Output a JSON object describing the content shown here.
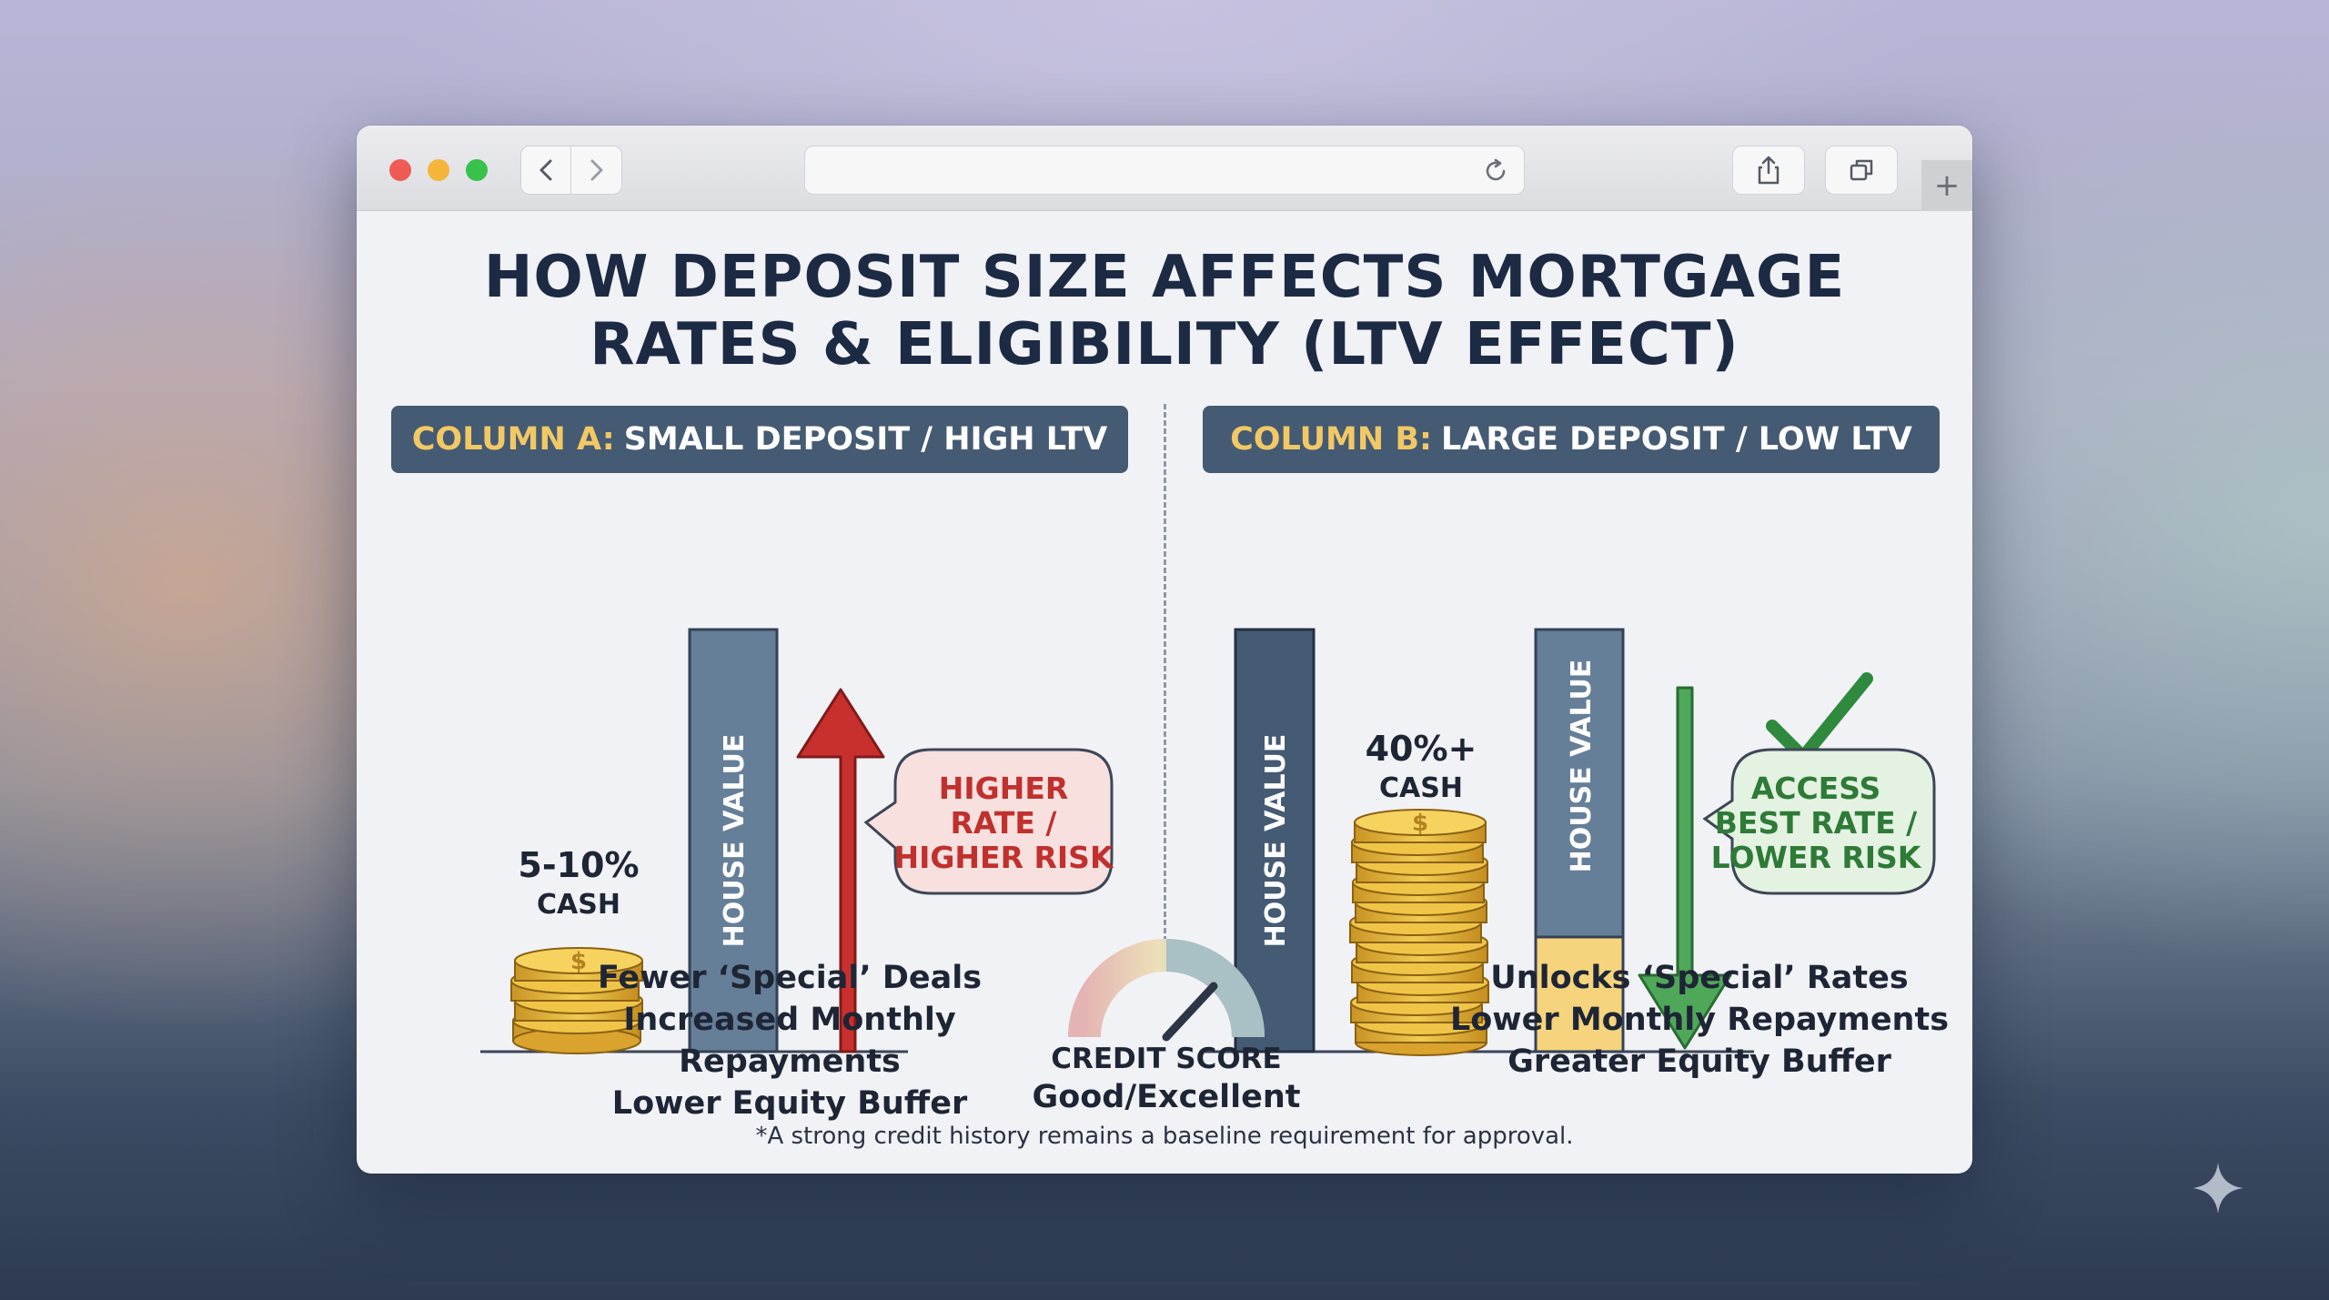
{
  "browser": {
    "back_icon": "chevron-left-icon",
    "forward_icon": "chevron-right-icon",
    "reload_icon": "reload-icon",
    "share_icon": "share-icon",
    "tabs_icon": "tabs-overview-icon",
    "new_tab_label": "+"
  },
  "infographic": {
    "title_line1": "HOW DEPOSIT SIZE AFFECTS MORTGAGE",
    "title_line2": "RATES & ELIGIBILITY (LTV EFFECT)",
    "column_a": {
      "prefix": "COLUMN A:",
      "heading": "SMALL DEPOSIT / HIGH LTV",
      "cash_amount": "5-10%",
      "cash_label": "CASH",
      "house_label": "HOUSE VALUE",
      "callout_line1": "HIGHER",
      "callout_line2": "RATE /",
      "callout_line3": "HIGHER RISK",
      "benefit1": "Fewer ‘Special’ Deals",
      "benefit2": "Increased Monthly Repayments",
      "benefit3": "Lower Equity Buffer"
    },
    "column_b": {
      "prefix": "COLUMN B:",
      "heading": "LARGE DEPOSIT / LOW LTV",
      "cash_amount": "40%+",
      "cash_label": "CASH",
      "house_label_left": "HOUSE VALUE",
      "house_label_right": "HOUSE VALUE",
      "callout_line1": "ACCESS",
      "callout_line2": "BEST RATE /",
      "callout_line3": "LOWER RISK",
      "benefit1": "Unlocks ‘Special’ Rates",
      "benefit2": "Lower Monthly Repayments",
      "benefit3": "Greater Equity Buffer"
    },
    "credit": {
      "label": "CREDIT SCORE",
      "value": "Good/Excellent"
    },
    "footnote": "*A strong credit history remains a baseline requirement for approval.",
    "colors": {
      "navy": "#1c2a44",
      "header_bg": "#455a73",
      "header_accent": "#f2c865",
      "bar_blue": "#667f99",
      "bar_dark": "#455a73",
      "equity_yellow": "#f6d47d",
      "risk_red": "#c8302e",
      "safe_green": "#4fa85a",
      "coin_gold": "#e8b83a"
    }
  }
}
